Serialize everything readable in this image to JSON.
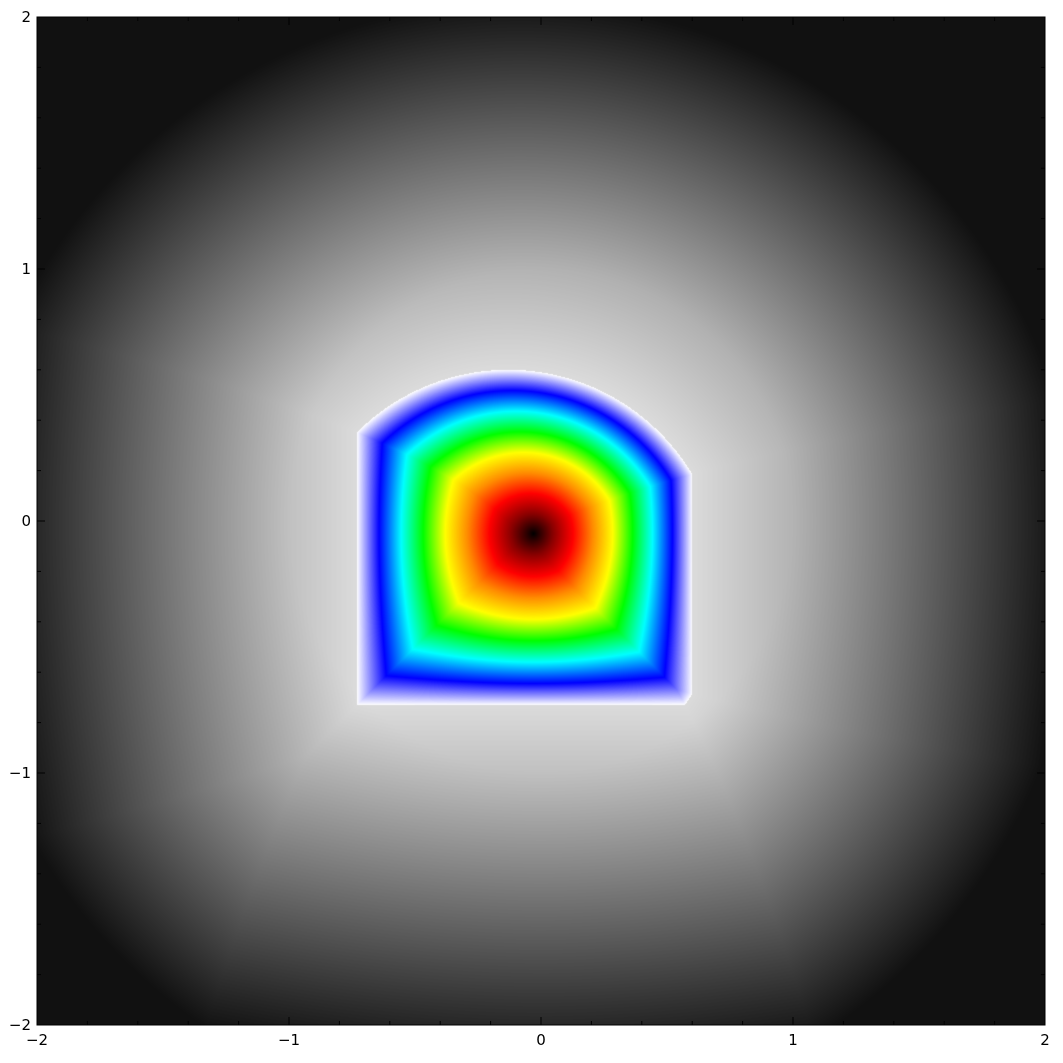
{
  "chart_data": {
    "type": "heatmap",
    "title": "",
    "xlabel": "",
    "ylabel": "",
    "xlim": [
      -2,
      2
    ],
    "ylim": [
      -2,
      2
    ],
    "x_ticks": [
      -2,
      -1,
      0,
      1,
      2
    ],
    "y_ticks": [
      -2,
      -1,
      0,
      1,
      2
    ],
    "x_tick_labels": [
      "−2",
      "−1",
      "0",
      "1",
      "2"
    ],
    "y_tick_labels": [
      "−2",
      "−1",
      "0",
      "1",
      "2"
    ],
    "minor_ticks": 0.2,
    "grid": false,
    "legend": "none",
    "shape": {
      "description": "quarter-disc region with rounded upper-right boundary",
      "square_extent": {
        "x": [
          -0.73,
          0.6
        ],
        "y": [
          -0.73,
          0.6
        ]
      },
      "arc_center": [
        -0.13,
        -0.25
      ],
      "arc_radius": 0.85,
      "minimum_point": [
        -0.03,
        -0.05
      ]
    },
    "colormap_inside": [
      "#000000",
      "#8a0000",
      "#ff0000",
      "#ff8c00",
      "#ffff00",
      "#00ff00",
      "#00ffff",
      "#0000ff",
      "#ffffff"
    ],
    "colormap_outside": [
      "#ffffff",
      "#111111"
    ]
  }
}
